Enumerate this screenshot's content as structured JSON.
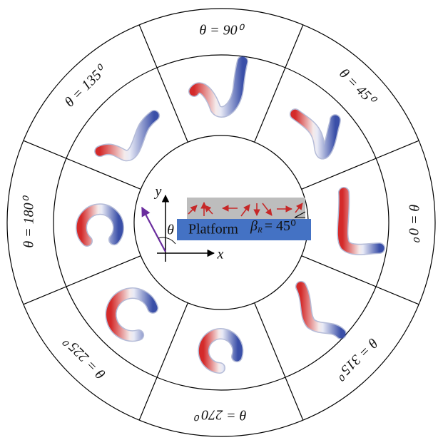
{
  "sectors": [
    {
      "label": "θ = 0⁰"
    },
    {
      "label": "θ = 45⁰"
    },
    {
      "label": "θ = 90⁰"
    },
    {
      "label": "θ = 135⁰"
    },
    {
      "label": "θ = 180⁰"
    },
    {
      "label": "θ = 225⁰"
    },
    {
      "label": "θ = 270⁰"
    },
    {
      "label": "θ = 315⁰"
    }
  ],
  "inner": {
    "axis_x": "x",
    "axis_y": "y",
    "angle": "θ",
    "platform": "Platform",
    "beta": "β",
    "beta_sub": "R",
    "beta_value": "= 45⁰"
  }
}
